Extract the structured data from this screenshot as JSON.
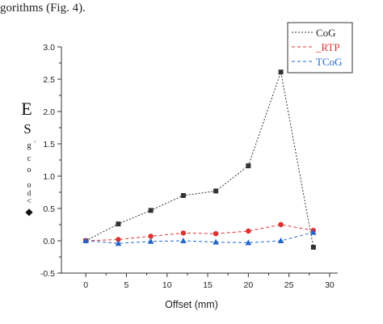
{
  "caption": "gorithms (Fig. 4).",
  "chart_data": {
    "type": "line",
    "title": "",
    "xlabel": "Offset (mm)",
    "ylabel_glyphs": [
      "E",
      "S",
      "g",
      "'",
      "c",
      "o",
      "o",
      "d",
      "<",
      "◆"
    ],
    "xlim": [
      -3,
      31
    ],
    "ylim": [
      -0.5,
      3.0
    ],
    "xticks": [
      0,
      5,
      10,
      15,
      20,
      25,
      30
    ],
    "yticks": [
      -0.5,
      0.0,
      0.5,
      1.0,
      1.5,
      2.0,
      2.5,
      3.0
    ],
    "xtick_labels": [
      "0",
      "5",
      "10",
      "15",
      "20",
      "25",
      "30"
    ],
    "ytick_labels": [
      "-0.5",
      "0.0",
      "0.5",
      "1.0",
      "1.5",
      "2.0",
      "2.5",
      "3.0"
    ],
    "grid": false,
    "legend": "top-right",
    "x": [
      0,
      4,
      8,
      12,
      16,
      20,
      24,
      28
    ],
    "series": [
      {
        "name": "CoG",
        "color": "#333333",
        "marker": "square",
        "values": [
          0.0,
          0.26,
          0.47,
          0.7,
          0.77,
          1.16,
          2.61,
          -0.1
        ]
      },
      {
        "name": "RTP",
        "color": "#e03030",
        "marker": "circle",
        "values": [
          0.0,
          0.02,
          0.07,
          0.12,
          0.11,
          0.15,
          0.25,
          0.16
        ]
      },
      {
        "name": "TCoG",
        "color": "#2266cc",
        "marker": "triangle",
        "values": [
          0.0,
          -0.04,
          -0.01,
          0.0,
          -0.02,
          -0.03,
          0.0,
          0.13
        ]
      }
    ],
    "legend_labels": [
      "CoG",
      "_RTP",
      "TCoG"
    ]
  }
}
